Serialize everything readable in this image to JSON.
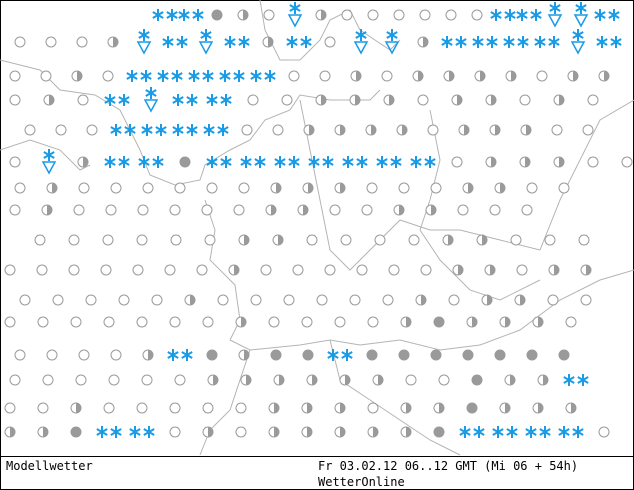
{
  "footer": {
    "product": "Modellwetter",
    "valid_time": "Fr 03.02.12 06..12 GMT (Mi 06 + 54h)",
    "provider": "WetterOnline"
  }
}
